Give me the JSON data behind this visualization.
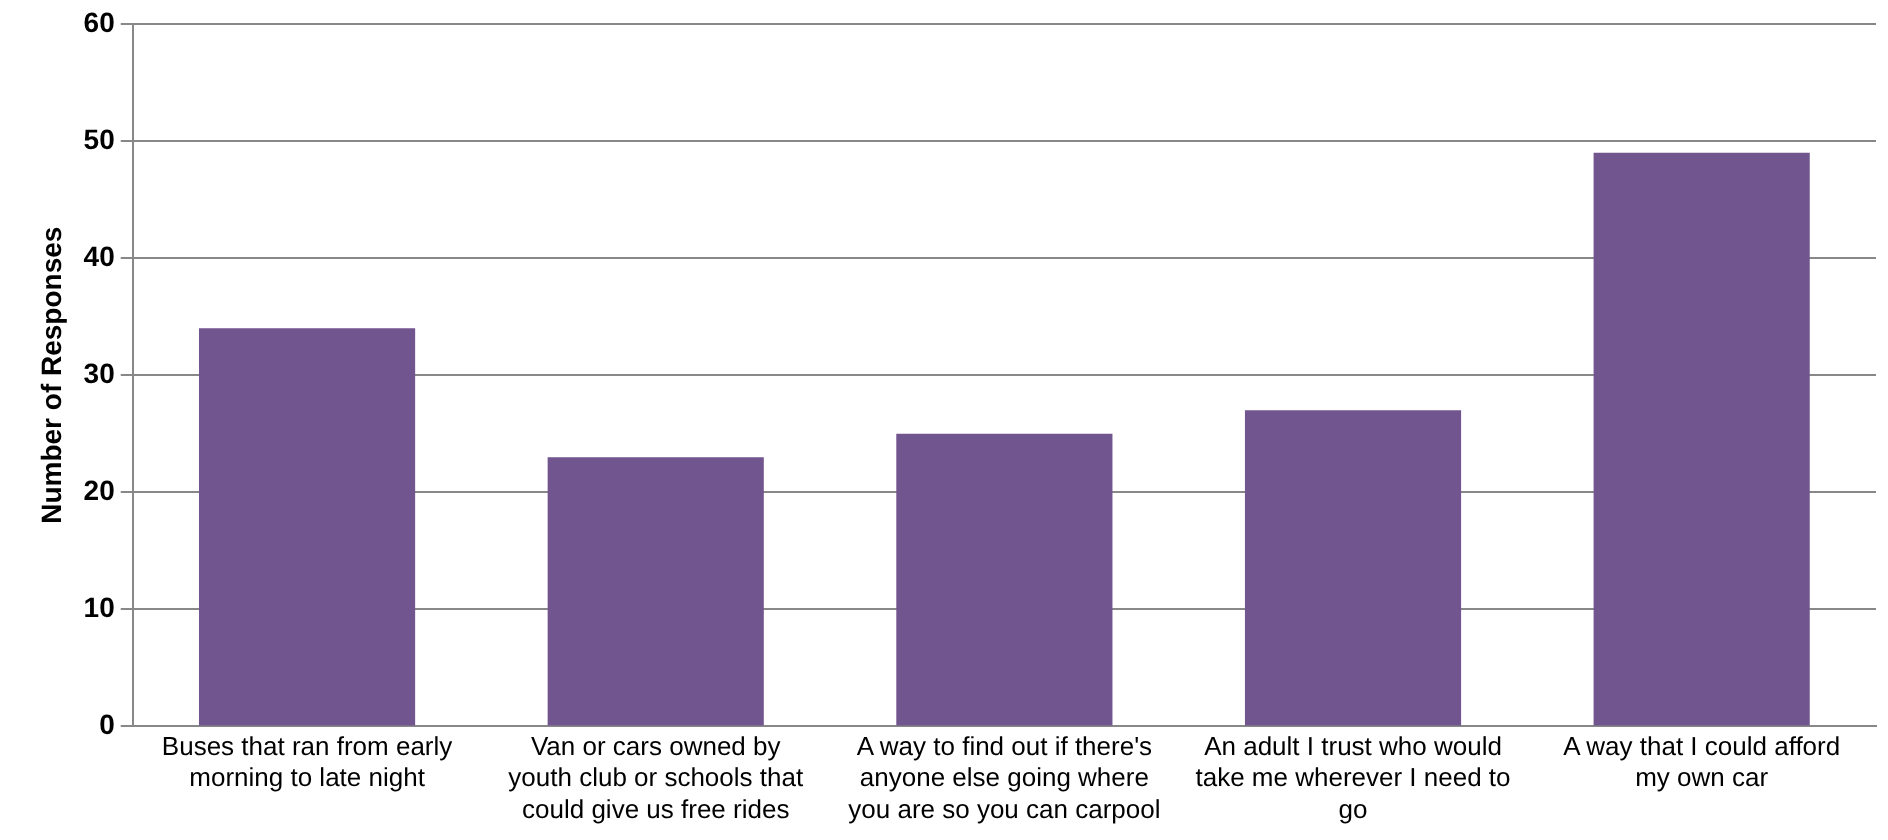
{
  "chart_data": {
    "type": "bar",
    "ylabel": "Number of Responses",
    "categories": [
      "Buses that ran from early morning to late night",
      "Van or cars owned by youth club or schools that could give us free rides",
      "A way to find out if there's anyone else going where you are so you can carpool",
      "An adult I trust who would take me wherever I need to go",
      "A way that I could afford my own car"
    ],
    "values": [
      34,
      23,
      25,
      27,
      49
    ],
    "color": "#71558f",
    "ylim": [
      0,
      60
    ],
    "yticks": [
      0,
      10,
      20,
      30,
      40,
      50,
      60
    ],
    "grid": "y",
    "legend": false
  }
}
